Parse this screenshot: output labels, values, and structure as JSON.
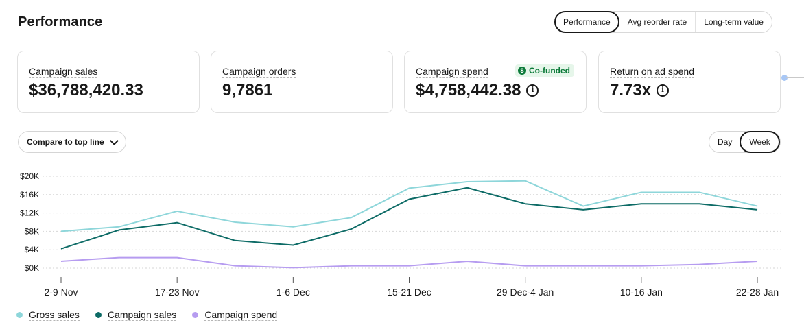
{
  "page": {
    "title": "Performance"
  },
  "view_tabs": [
    {
      "label": "Performance",
      "active": true
    },
    {
      "label": "Avg reorder rate",
      "active": false
    },
    {
      "label": "Long-term value",
      "active": false
    }
  ],
  "metrics": [
    {
      "label": "Campaign sales",
      "value": "$36,788,420.33"
    },
    {
      "label": "Campaign orders",
      "value": "9,7861"
    },
    {
      "label": "Campaign spend",
      "value": "$4,758,442.38",
      "badge": "Co-funded",
      "badge_icon": "$"
    },
    {
      "label": "Return on ad spend",
      "value": "7.73x"
    }
  ],
  "compare_button": {
    "label": "Compare to top line"
  },
  "granularity": [
    {
      "label": "Day",
      "active": false
    },
    {
      "label": "Week",
      "active": true
    }
  ],
  "colors": {
    "gross_sales": "#8ed6da",
    "campaign_sales": "#0d6b66",
    "campaign_spend": "#b69cf0",
    "cofunded_badge": "#0b7a39"
  },
  "chart_data": {
    "type": "line",
    "x": [
      "2-9 Nov",
      "",
      "17-23 Nov",
      "",
      "1-6 Dec",
      "",
      "15-21 Dec",
      "",
      "29 Dec-4 Jan",
      "",
      "10-16 Jan",
      "",
      "22-28 Jan"
    ],
    "x_tick_labels": [
      "2-9 Nov",
      "17-23 Nov",
      "1-6 Dec",
      "15-21 Dec",
      "29 Dec-4 Jan",
      "10-16 Jan",
      "22-28 Jan"
    ],
    "y_tick_labels": [
      "$0K",
      "$4K",
      "$8K",
      "$12K",
      "$16K",
      "$20K"
    ],
    "ylim": [
      0,
      20000
    ],
    "grid": true,
    "legend_position": "bottom-left",
    "series": [
      {
        "name": "Gross sales",
        "color": "#8ed6da",
        "values": [
          8000,
          9000,
          12400,
          10000,
          9000,
          11000,
          17400,
          18800,
          19000,
          13500,
          16500,
          16500,
          13500
        ]
      },
      {
        "name": "Campaign sales",
        "color": "#0d6b66",
        "values": [
          4200,
          8300,
          9900,
          6000,
          5000,
          8500,
          15000,
          17500,
          14000,
          12700,
          14000,
          14000,
          12700
        ]
      },
      {
        "name": "Campaign spend",
        "color": "#b69cf0",
        "values": [
          1500,
          2300,
          2300,
          500,
          100,
          500,
          500,
          1500,
          500,
          500,
          500,
          800,
          1500
        ]
      }
    ]
  }
}
